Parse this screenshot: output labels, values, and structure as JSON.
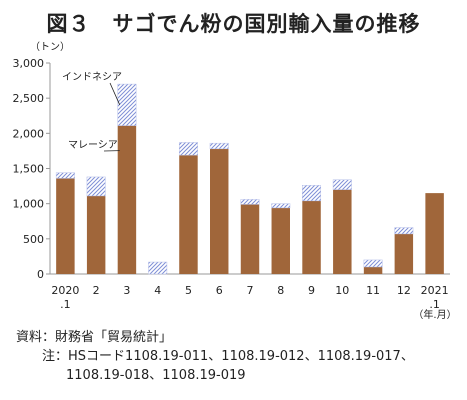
{
  "title": "図３　サゴでん粉の国別輸入量の推移",
  "chart_data": {
    "type": "bar",
    "stacked": true,
    "unit_label": "（トン）",
    "x_unit_label": "（年.月）",
    "categories": [
      "2020\n.1",
      "2",
      "3",
      "4",
      "5",
      "6",
      "7",
      "8",
      "9",
      "10",
      "11",
      "12",
      "2021\n.1"
    ],
    "series": [
      {
        "name": "マレーシア",
        "color": "#a0663a",
        "pattern": false,
        "values": [
          1360,
          1110,
          2110,
          0,
          1690,
          1780,
          990,
          940,
          1040,
          1200,
          100,
          570,
          1150
        ]
      },
      {
        "name": "インドネシア",
        "color": "#7f8fd6",
        "pattern": true,
        "values": [
          80,
          270,
          590,
          170,
          180,
          80,
          70,
          60,
          220,
          140,
          100,
          90,
          0
        ]
      }
    ],
    "ylim": [
      0,
      3000
    ],
    "yticks": [
      "0",
      "500",
      "1,000",
      "1,500",
      "2,000",
      "2,500",
      "3,000"
    ],
    "grid": false,
    "annotations": [
      {
        "text": "インドネシア",
        "series": "インドネシア",
        "category_index": 2
      },
      {
        "text": "マレーシア",
        "series": "マレーシア",
        "category_index": 2
      }
    ]
  },
  "notes": {
    "source_label": "資料：",
    "source_text": "財務省「貿易統計」",
    "note_label": "注：",
    "note_line1": "HSコード1108.19-011、1108.19-012、1108.19-017、",
    "note_line2": "1108.19-018、1108.19-019"
  }
}
